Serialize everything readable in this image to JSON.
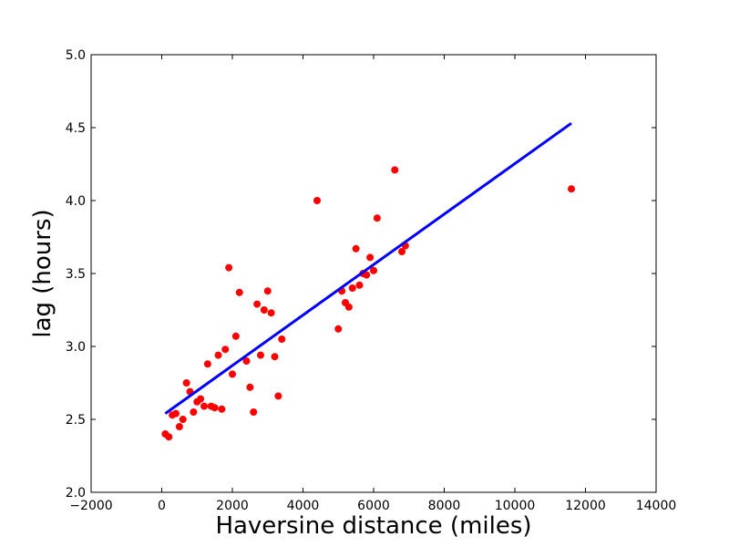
{
  "chart_data": {
    "type": "scatter",
    "title": "",
    "xlabel": "Haversine distance (miles)",
    "ylabel": "lag (hours)",
    "xlim": [
      -2000,
      14000
    ],
    "ylim": [
      2.0,
      5.0
    ],
    "x_ticks": [
      "−2000",
      "0",
      "2000",
      "4000",
      "6000",
      "8000",
      "10000",
      "12000",
      "14000"
    ],
    "y_ticks": [
      "2.0",
      "2.5",
      "3.0",
      "3.5",
      "4.0",
      "4.5",
      "5.0"
    ],
    "grid": false,
    "legend": "none",
    "series": [
      {
        "type": "scatter",
        "color": "#ff0000",
        "points": [
          [
            100,
            2.4
          ],
          [
            200,
            2.38
          ],
          [
            300,
            2.53
          ],
          [
            400,
            2.54
          ],
          [
            500,
            2.45
          ],
          [
            600,
            2.5
          ],
          [
            700,
            2.75
          ],
          [
            800,
            2.69
          ],
          [
            900,
            2.55
          ],
          [
            1000,
            2.62
          ],
          [
            1100,
            2.64
          ],
          [
            1200,
            2.59
          ],
          [
            1300,
            2.88
          ],
          [
            1400,
            2.59
          ],
          [
            1500,
            2.58
          ],
          [
            1600,
            2.94
          ],
          [
            1700,
            2.57
          ],
          [
            1800,
            2.98
          ],
          [
            1900,
            3.54
          ],
          [
            2000,
            2.81
          ],
          [
            2100,
            3.07
          ],
          [
            2200,
            3.37
          ],
          [
            2400,
            2.9
          ],
          [
            2500,
            2.72
          ],
          [
            2600,
            2.55
          ],
          [
            2700,
            3.29
          ],
          [
            2800,
            2.94
          ],
          [
            2900,
            3.25
          ],
          [
            3000,
            3.38
          ],
          [
            3100,
            3.23
          ],
          [
            3200,
            2.93
          ],
          [
            3300,
            2.66
          ],
          [
            3400,
            3.05
          ],
          [
            4400,
            4.0
          ],
          [
            5000,
            3.12
          ],
          [
            5100,
            3.38
          ],
          [
            5200,
            3.3
          ],
          [
            5300,
            3.27
          ],
          [
            5400,
            3.4
          ],
          [
            5500,
            3.67
          ],
          [
            5600,
            3.42
          ],
          [
            5700,
            3.5
          ],
          [
            5800,
            3.49
          ],
          [
            5900,
            3.61
          ],
          [
            6000,
            3.52
          ],
          [
            6100,
            3.88
          ],
          [
            6600,
            4.21
          ],
          [
            6800,
            3.65
          ],
          [
            6900,
            3.69
          ],
          [
            11600,
            4.08
          ]
        ]
      },
      {
        "type": "line",
        "color": "#0000ff",
        "points": [
          [
            100,
            2.54
          ],
          [
            11600,
            4.53
          ]
        ]
      }
    ]
  }
}
